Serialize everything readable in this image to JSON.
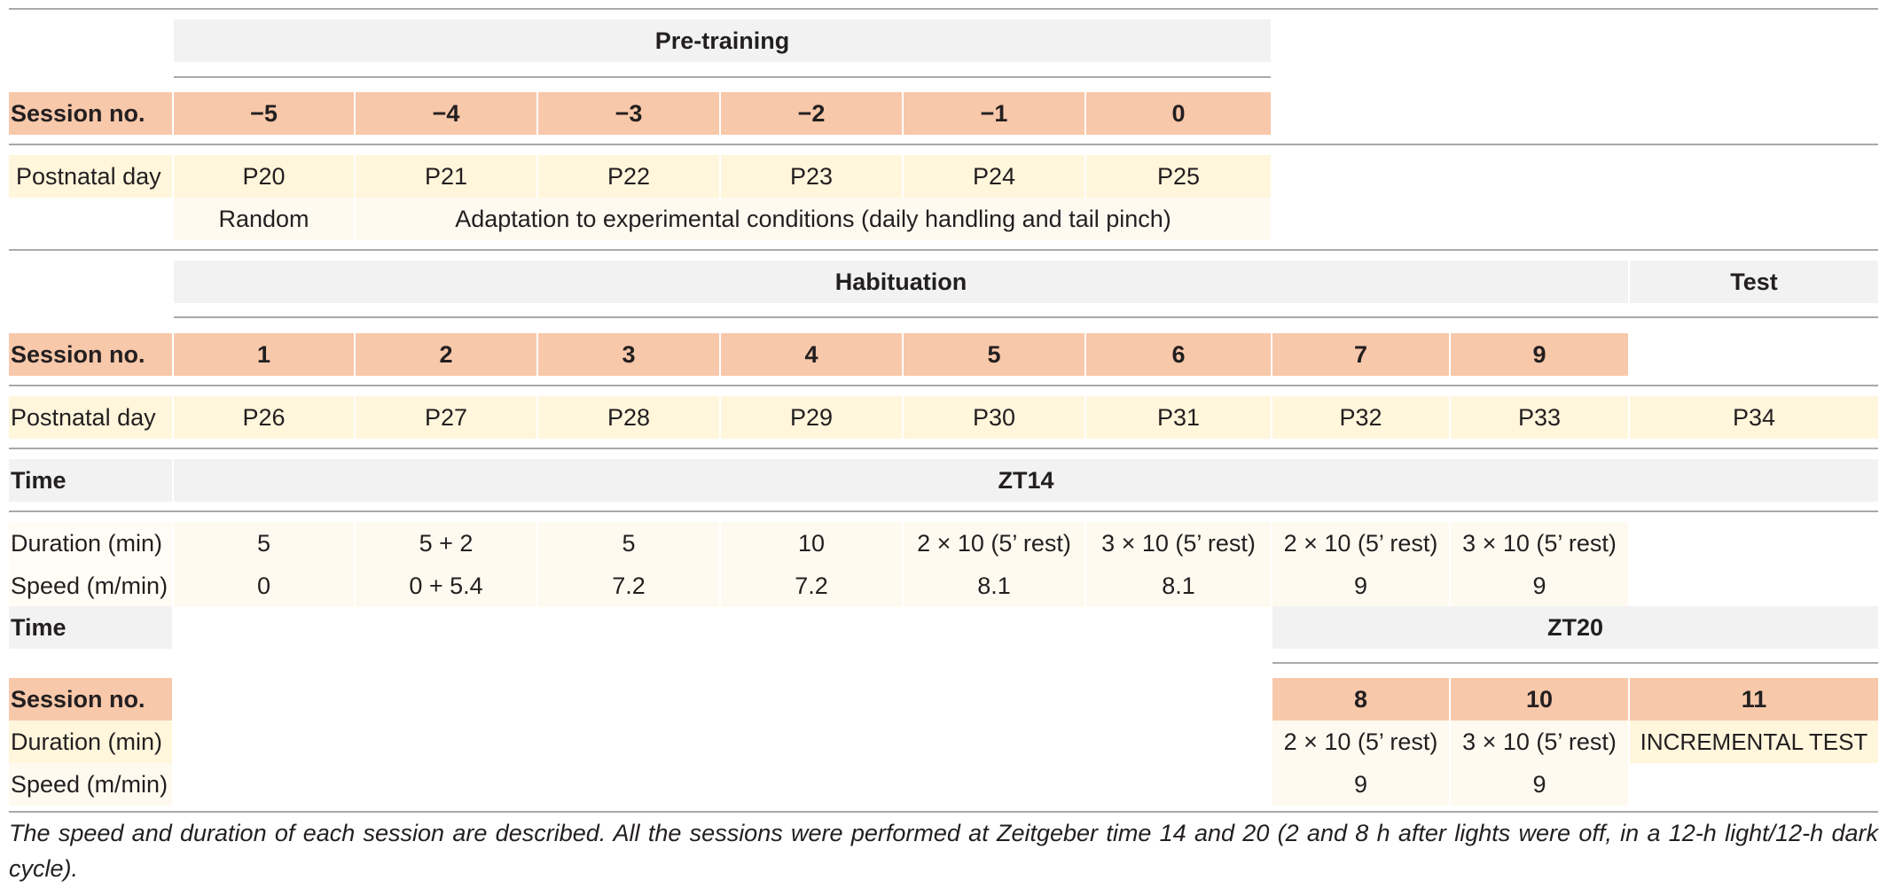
{
  "pretraining": {
    "title": "Pre-training",
    "session_label": "Session no.",
    "sessions": [
      "−5",
      "−4",
      "−3",
      "−2",
      "−1",
      "0"
    ],
    "postnatal_label": "Postnatal day",
    "days": [
      "P20",
      "P21",
      "P22",
      "P23",
      "P24",
      "P25"
    ],
    "random": "Random",
    "adaptation": "Adaptation to experimental conditions (daily handling and tail pinch)"
  },
  "habituation": {
    "title": "Habituation",
    "test_title": "Test",
    "session_label": "Session no.",
    "sessions": [
      "1",
      "2",
      "3",
      "4",
      "5",
      "6",
      "7",
      "9"
    ],
    "postnatal_label": "Postnatal day",
    "days": [
      "P26",
      "P27",
      "P28",
      "P29",
      "P30",
      "P31",
      "P32",
      "P33"
    ],
    "test_day": "P34",
    "time_label": "Time",
    "time_value": "ZT14",
    "duration_label": "Duration (min)",
    "durations": [
      "5",
      "5 + 2",
      "5",
      "10",
      "2 × 10 (5’ rest)",
      "3 × 10 (5’ rest)",
      "2 × 10 (5’ rest)",
      "3 × 10 (5’ rest)"
    ],
    "speed_label": "Speed (m/min)",
    "speeds": [
      "0",
      "0 + 5.4",
      "7.2",
      "7.2",
      "8.1",
      "8.1",
      "9",
      "9"
    ]
  },
  "zt20": {
    "time_label": "Time",
    "time_value": "ZT20",
    "session_label": "Session no.",
    "sessions": [
      "8",
      "10",
      "11"
    ],
    "duration_label": "Duration (min)",
    "durations": [
      "2 × 10 (5’ rest)",
      "3 × 10 (5’ rest)",
      "INCREMENTAL TEST"
    ],
    "speed_label": "Speed (m/min)",
    "speeds": [
      "9",
      "9"
    ]
  },
  "caption": "The speed and duration of each session are described. All the sessions were performed at Zeitgeber time 14 and 20 (2 and 8 h after lights were off, in a 12-h light/12-h dark cycle).",
  "colors": {
    "header_gray": "#f2f2f2",
    "session_orange": "#f8c8aa",
    "day_yellow": "#fff6dc",
    "light_cream": "#fffaf0",
    "rule_gray": "#a7a9ac"
  }
}
